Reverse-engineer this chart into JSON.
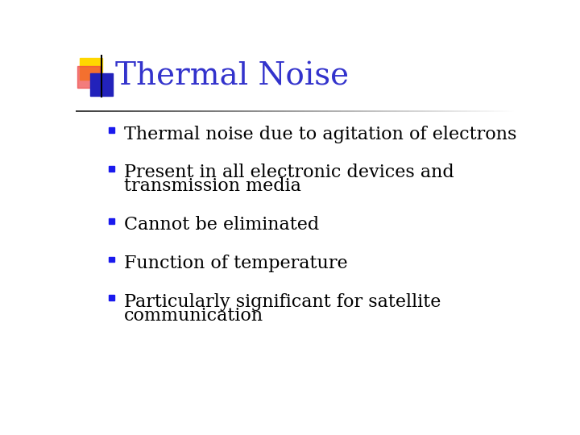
{
  "title": "Thermal Noise",
  "title_color": "#3333CC",
  "title_fontsize": 28,
  "background_color": "#FFFFFF",
  "bullet_text_color": "#000000",
  "bullet_fontsize": 16,
  "bullets": [
    [
      "Thermal noise due to agitation of electrons"
    ],
    [
      "Present in all electronic devices and",
      "transmission media"
    ],
    [
      "Cannot be eliminated"
    ],
    [
      "Function of temperature"
    ],
    [
      "Particularly significant for satellite",
      "communication"
    ]
  ],
  "bullet_marker_color": "#1a1aee",
  "logo_yellow": "#FFD700",
  "logo_red": "#EE4444",
  "logo_blue": "#2222BB",
  "logo_pink": "#FF9999"
}
